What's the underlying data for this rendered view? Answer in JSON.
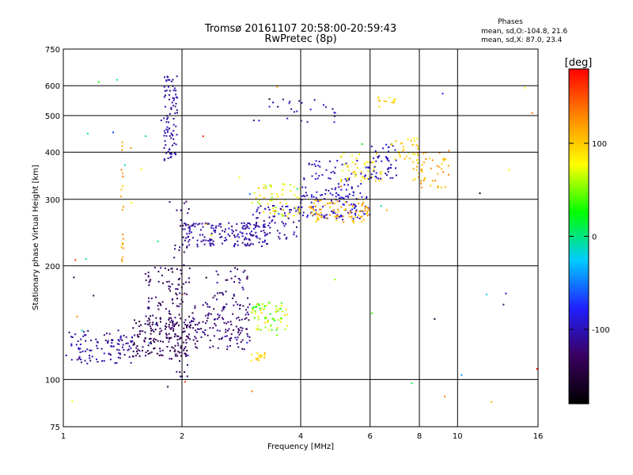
{
  "chart_data": {
    "type": "scatter",
    "title": "Tromsø 20161107 20:58:00-20:59:43",
    "subtitle": "RwPretec (8p)",
    "xlabel": "Frequency [MHz]",
    "ylabel": "Stationary phase Virtual Height [km]",
    "x_scale": "log",
    "y_scale": "log",
    "xlim": [
      1,
      16
    ],
    "ylim": [
      75,
      750
    ],
    "x_ticks": [
      1,
      2,
      4,
      6,
      8,
      10,
      16
    ],
    "y_ticks": [
      75,
      100,
      200,
      300,
      400,
      500,
      600,
      750
    ],
    "grid": true,
    "stats": {
      "heading": "Phases",
      "line_o": "mean, sd,O:-104.8, 21.6",
      "line_x": "mean, sd,X:  87.0, 23.4"
    },
    "colorbar": {
      "label": "[deg]",
      "range": [
        -180,
        180
      ],
      "ticks": [
        -100,
        0,
        100
      ],
      "colors": [
        "#000000",
        "#3a0060",
        "#2020ff",
        "#00ccff",
        "#00ff00",
        "#ffff00",
        "#ff8800",
        "#ff0000"
      ]
    },
    "clusters": [
      {
        "x": [
          1.0,
          1.5
        ],
        "y": [
          110,
          135
        ],
        "phase": [
          -125,
          -95
        ],
        "n": 110
      },
      {
        "x": [
          1.5,
          2.1
        ],
        "y": [
          115,
          145
        ],
        "phase": [
          -150,
          -120
        ],
        "n": 160
      },
      {
        "x": [
          2.1,
          3.0
        ],
        "y": [
          120,
          160
        ],
        "phase": [
          -140,
          -105
        ],
        "n": 140
      },
      {
        "x": [
          3.0,
          3.7
        ],
        "y": [
          135,
          160
        ],
        "phase": [
          20,
          100
        ],
        "n": 70
      },
      {
        "x": [
          3.0,
          3.3
        ],
        "y": [
          112,
          118
        ],
        "phase": [
          80,
          110
        ],
        "n": 18
      },
      {
        "x": [
          1.6,
          2.0
        ],
        "y": [
          140,
          200
        ],
        "phase": [
          -145,
          -110
        ],
        "n": 70
      },
      {
        "x": [
          1.85,
          2.1
        ],
        "y": [
          100,
          300
        ],
        "phase": [
          -145,
          -110
        ],
        "n": 70
      },
      {
        "x": [
          2.4,
          3.0
        ],
        "y": [
          160,
          200
        ],
        "phase": [
          -140,
          -105
        ],
        "n": 35
      },
      {
        "x": [
          2.0,
          3.3
        ],
        "y": [
          225,
          260
        ],
        "phase": [
          -120,
          -95
        ],
        "n": 170
      },
      {
        "x": [
          3.0,
          4.0
        ],
        "y": [
          235,
          290
        ],
        "phase": [
          -120,
          -90
        ],
        "n": 70
      },
      {
        "x": [
          3.0,
          4.0
        ],
        "y": [
          270,
          330
        ],
        "phase": [
          50,
          105
        ],
        "n": 60
      },
      {
        "x": [
          4.0,
          6.0
        ],
        "y": [
          265,
          310
        ],
        "phase": [
          -110,
          -80
        ],
        "n": 90
      },
      {
        "x": [
          4.2,
          6.0
        ],
        "y": [
          260,
          300
        ],
        "phase": [
          90,
          130
        ],
        "n": 90
      },
      {
        "x": [
          4.0,
          6.0
        ],
        "y": [
          300,
          380
        ],
        "phase": [
          -110,
          -90
        ],
        "n": 80
      },
      {
        "x": [
          5.0,
          6.5
        ],
        "y": [
          330,
          400
        ],
        "phase": [
          70,
          110
        ],
        "n": 50
      },
      {
        "x": [
          6.0,
          7.0
        ],
        "y": [
          340,
          420
        ],
        "phase": [
          -110,
          -90
        ],
        "n": 45
      },
      {
        "x": [
          6.8,
          8.0
        ],
        "y": [
          380,
          440
        ],
        "phase": [
          80,
          110
        ],
        "n": 30
      },
      {
        "x": [
          7.7,
          9.5
        ],
        "y": [
          320,
          410
        ],
        "phase": [
          90,
          130
        ],
        "n": 50
      },
      {
        "x": [
          1.8,
          1.95
        ],
        "y": [
          380,
          640
        ],
        "phase": [
          -120,
          -90
        ],
        "n": 90
      },
      {
        "x": [
          3.0,
          5.0
        ],
        "y": [
          480,
          560
        ],
        "phase": [
          -120,
          -90
        ],
        "n": 25
      },
      {
        "x": [
          1.4,
          1.42
        ],
        "y": [
          200,
          450
        ],
        "phase": [
          100,
          140
        ],
        "n": 20
      },
      {
        "x": [
          6.3,
          7.0
        ],
        "y": [
          540,
          560
        ],
        "phase": [
          80,
          110
        ],
        "n": 12
      },
      {
        "x": [
          1.0,
          16.0
        ],
        "y": [
          80,
          650
        ],
        "phase": [
          -180,
          180
        ],
        "n": 60
      }
    ]
  }
}
